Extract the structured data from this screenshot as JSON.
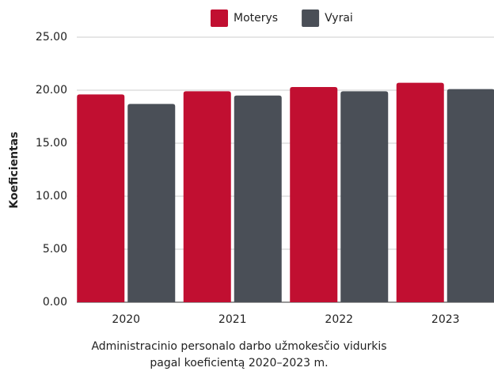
{
  "chart_data": {
    "type": "bar",
    "title": "Administracinio personalo darbo užmokesčio vidurkis pagal koeficientą 2020–2023 m.",
    "y_label": "Koeficientas",
    "categories": [
      "2020",
      "2021",
      "2022",
      "2023"
    ],
    "series": [
      {
        "name": "Moterys",
        "color": "#c10f31",
        "values": [
          19.6,
          19.9,
          20.3,
          20.7
        ]
      },
      {
        "name": "Vyrai",
        "color": "#4a4f57",
        "values": [
          18.7,
          19.5,
          19.9,
          20.1
        ]
      }
    ],
    "ylim": [
      0,
      25
    ],
    "yticks": [
      {
        "value": 0,
        "label": "0.00"
      },
      {
        "value": 5,
        "label": "5.00"
      },
      {
        "value": 10,
        "label": "10.00"
      },
      {
        "value": 15,
        "label": "15.00"
      },
      {
        "value": 20,
        "label": "20.00"
      },
      {
        "value": 25,
        "label": "25.00"
      }
    ],
    "grid": true,
    "legend": "top"
  }
}
